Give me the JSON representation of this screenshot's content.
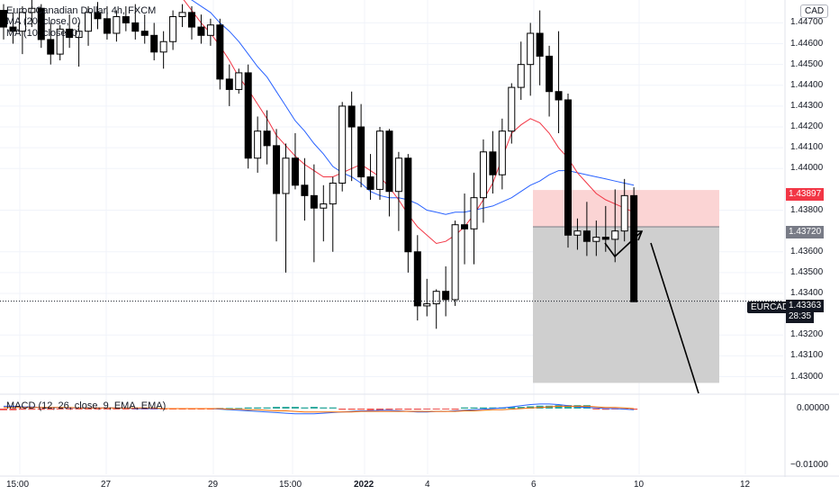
{
  "header": {
    "title": "Euro / Canadian Dollar, 4h, FXCM",
    "ma20": "MA (20, close, 0)",
    "ma10": "MA (10, close, 0)",
    "macd": "MACD (12, 26, close, 9, EMA, EMA)",
    "currency": "CAD"
  },
  "colors": {
    "up": "#ffffff",
    "down": "#000000",
    "ma20": "#2962ff",
    "ma10": "#f23645",
    "stop": "#fbd4d4",
    "target": "#cfcfcf",
    "macd_pos": "#26a69a",
    "macd_neg": "#ef5350"
  },
  "price_axis": {
    "ticks": [
      "1.44700",
      "1.44600",
      "1.44500",
      "1.44400",
      "1.44300",
      "1.44200",
      "1.44100",
      "1.44000",
      "1.43800",
      "1.43600",
      "1.43500",
      "1.43400",
      "1.43200",
      "1.43100",
      "1.43000"
    ],
    "stop_label": "1.43897",
    "entry_label": "1.43720",
    "current_label": "1.43363",
    "countdown": "28:35",
    "symbol": "EURCAD"
  },
  "macd_axis": {
    "ticks": [
      "0.00000",
      "−0.01000"
    ]
  },
  "time_axis": {
    "ticks": [
      "15:00",
      "27",
      "29",
      "15:00",
      "2022",
      "4",
      "6",
      "10",
      "12"
    ]
  },
  "chart_data": {
    "type": "candlestick",
    "symbol": "EURCAD",
    "timeframe": "4h",
    "candles": [
      {
        "o": 1.4476,
        "h": 1.4479,
        "l": 1.4462,
        "c": 1.4468
      },
      {
        "o": 1.4468,
        "h": 1.4475,
        "l": 1.446,
        "c": 1.4466
      },
      {
        "o": 1.4466,
        "h": 1.4478,
        "l": 1.4455,
        "c": 1.4475
      },
      {
        "o": 1.4475,
        "h": 1.4481,
        "l": 1.4468,
        "c": 1.4477
      },
      {
        "o": 1.4477,
        "h": 1.4479,
        "l": 1.4458,
        "c": 1.4462
      },
      {
        "o": 1.4462,
        "h": 1.447,
        "l": 1.445,
        "c": 1.4455
      },
      {
        "o": 1.4455,
        "h": 1.4469,
        "l": 1.4452,
        "c": 1.4467
      },
      {
        "o": 1.4467,
        "h": 1.4474,
        "l": 1.4458,
        "c": 1.4463
      },
      {
        "o": 1.4463,
        "h": 1.447,
        "l": 1.4449,
        "c": 1.4466
      },
      {
        "o": 1.4466,
        "h": 1.4478,
        "l": 1.4459,
        "c": 1.4475
      },
      {
        "o": 1.4475,
        "h": 1.448,
        "l": 1.4467,
        "c": 1.4472
      },
      {
        "o": 1.4472,
        "h": 1.4478,
        "l": 1.4462,
        "c": 1.4465
      },
      {
        "o": 1.4465,
        "h": 1.4476,
        "l": 1.4461,
        "c": 1.4473
      },
      {
        "o": 1.4473,
        "h": 1.4478,
        "l": 1.4466,
        "c": 1.447
      },
      {
        "o": 1.447,
        "h": 1.4479,
        "l": 1.4462,
        "c": 1.4466
      },
      {
        "o": 1.4466,
        "h": 1.4474,
        "l": 1.446,
        "c": 1.4464
      },
      {
        "o": 1.4464,
        "h": 1.447,
        "l": 1.4452,
        "c": 1.4456
      },
      {
        "o": 1.4456,
        "h": 1.4466,
        "l": 1.4448,
        "c": 1.4461
      },
      {
        "o": 1.4461,
        "h": 1.4476,
        "l": 1.4457,
        "c": 1.4473
      },
      {
        "o": 1.4473,
        "h": 1.4479,
        "l": 1.4468,
        "c": 1.4475
      },
      {
        "o": 1.4475,
        "h": 1.4478,
        "l": 1.4462,
        "c": 1.4468
      },
      {
        "o": 1.4468,
        "h": 1.4474,
        "l": 1.446,
        "c": 1.4464
      },
      {
        "o": 1.4464,
        "h": 1.4472,
        "l": 1.4459,
        "c": 1.4469
      },
      {
        "o": 1.4469,
        "h": 1.4472,
        "l": 1.4438,
        "c": 1.4443
      },
      {
        "o": 1.4443,
        "h": 1.445,
        "l": 1.443,
        "c": 1.4438
      },
      {
        "o": 1.4438,
        "h": 1.4448,
        "l": 1.4436,
        "c": 1.4446
      },
      {
        "o": 1.4446,
        "h": 1.445,
        "l": 1.44,
        "c": 1.4405
      },
      {
        "o": 1.4405,
        "h": 1.4425,
        "l": 1.4398,
        "c": 1.4418
      },
      {
        "o": 1.4418,
        "h": 1.4428,
        "l": 1.4402,
        "c": 1.4411
      },
      {
        "o": 1.4411,
        "h": 1.4419,
        "l": 1.4365,
        "c": 1.4388
      },
      {
        "o": 1.4388,
        "h": 1.4412,
        "l": 1.435,
        "c": 1.4405
      },
      {
        "o": 1.4405,
        "h": 1.4417,
        "l": 1.439,
        "c": 1.4392
      },
      {
        "o": 1.4392,
        "h": 1.4405,
        "l": 1.4375,
        "c": 1.4387
      },
      {
        "o": 1.4387,
        "h": 1.4402,
        "l": 1.4355,
        "c": 1.4381
      },
      {
        "o": 1.4381,
        "h": 1.4392,
        "l": 1.4365,
        "c": 1.4383
      },
      {
        "o": 1.4383,
        "h": 1.4396,
        "l": 1.436,
        "c": 1.4393
      },
      {
        "o": 1.4393,
        "h": 1.4432,
        "l": 1.4389,
        "c": 1.443
      },
      {
        "o": 1.443,
        "h": 1.4437,
        "l": 1.4394,
        "c": 1.442
      },
      {
        "o": 1.442,
        "h": 1.4431,
        "l": 1.4391,
        "c": 1.4396
      },
      {
        "o": 1.4396,
        "h": 1.4407,
        "l": 1.4385,
        "c": 1.439
      },
      {
        "o": 1.439,
        "h": 1.442,
        "l": 1.4385,
        "c": 1.4418
      },
      {
        "o": 1.4418,
        "h": 1.4419,
        "l": 1.4377,
        "c": 1.4389
      },
      {
        "o": 1.4389,
        "h": 1.4408,
        "l": 1.437,
        "c": 1.4405
      },
      {
        "o": 1.4405,
        "h": 1.4407,
        "l": 1.435,
        "c": 1.436
      },
      {
        "o": 1.436,
        "h": 1.4368,
        "l": 1.4327,
        "c": 1.4334
      },
      {
        "o": 1.4334,
        "h": 1.4347,
        "l": 1.4329,
        "c": 1.4335
      },
      {
        "o": 1.4335,
        "h": 1.4342,
        "l": 1.4323,
        "c": 1.4341
      },
      {
        "o": 1.4341,
        "h": 1.4353,
        "l": 1.4329,
        "c": 1.4337
      },
      {
        "o": 1.4337,
        "h": 1.4375,
        "l": 1.4334,
        "c": 1.4373
      },
      {
        "o": 1.4373,
        "h": 1.4388,
        "l": 1.4354,
        "c": 1.4371
      },
      {
        "o": 1.4371,
        "h": 1.4398,
        "l": 1.4354,
        "c": 1.4386
      },
      {
        "o": 1.4386,
        "h": 1.4414,
        "l": 1.4374,
        "c": 1.4408
      },
      {
        "o": 1.4408,
        "h": 1.4418,
        "l": 1.4388,
        "c": 1.4397
      },
      {
        "o": 1.4397,
        "h": 1.4424,
        "l": 1.439,
        "c": 1.4418
      },
      {
        "o": 1.4418,
        "h": 1.4441,
        "l": 1.4412,
        "c": 1.4439
      },
      {
        "o": 1.4439,
        "h": 1.4461,
        "l": 1.4433,
        "c": 1.445
      },
      {
        "o": 1.445,
        "h": 1.447,
        "l": 1.4435,
        "c": 1.4465
      },
      {
        "o": 1.4465,
        "h": 1.4476,
        "l": 1.444,
        "c": 1.4454
      },
      {
        "o": 1.4454,
        "h": 1.4459,
        "l": 1.4425,
        "c": 1.4437
      },
      {
        "o": 1.4437,
        "h": 1.4466,
        "l": 1.4417,
        "c": 1.4433
      },
      {
        "o": 1.4433,
        "h": 1.4436,
        "l": 1.4362,
        "c": 1.4368
      },
      {
        "o": 1.4368,
        "h": 1.4376,
        "l": 1.4361,
        "c": 1.437
      },
      {
        "o": 1.437,
        "h": 1.4384,
        "l": 1.4358,
        "c": 1.4365
      },
      {
        "o": 1.4365,
        "h": 1.4375,
        "l": 1.4358,
        "c": 1.4367
      },
      {
        "o": 1.4367,
        "h": 1.4382,
        "l": 1.436,
        "c": 1.4366
      },
      {
        "o": 1.4366,
        "h": 1.439,
        "l": 1.4355,
        "c": 1.437
      },
      {
        "o": 1.437,
        "h": 1.4395,
        "l": 1.4365,
        "c": 1.4387
      },
      {
        "o": 1.4387,
        "h": 1.4391,
        "l": 1.4336,
        "c": 1.4336
      }
    ],
    "ma20": [
      null,
      null,
      null,
      null,
      null,
      null,
      null,
      null,
      null,
      null,
      null,
      null,
      null,
      null,
      null,
      null,
      null,
      null,
      null,
      1.4484,
      1.4481,
      1.4478,
      1.4475,
      1.447,
      1.4466,
      1.4461,
      1.4455,
      1.4449,
      1.4444,
      1.4437,
      1.443,
      1.4423,
      1.4418,
      1.4412,
      1.4407,
      1.4401,
      1.4398,
      1.4396,
      1.4393,
      1.4389,
      1.4387,
      1.4386,
      1.4386,
      1.4385,
      1.4383,
      1.438,
      1.4379,
      1.4378,
      1.4379,
      1.4379,
      1.438,
      1.4381,
      1.4382,
      1.4384,
      1.4386,
      1.4389,
      1.4392,
      1.4394,
      1.4397,
      1.4399,
      1.4399,
      1.4398,
      1.4397,
      1.4396,
      1.4395,
      1.4394,
      1.4393,
      1.4392
    ],
    "ma10": [
      null,
      null,
      null,
      null,
      null,
      null,
      null,
      null,
      null,
      null,
      null,
      null,
      null,
      null,
      null,
      null,
      null,
      null,
      null,
      1.4482,
      1.4476,
      1.447,
      1.4465,
      1.4459,
      1.4452,
      1.4444,
      1.4438,
      1.4431,
      1.4424,
      1.4416,
      1.4411,
      1.4406,
      1.4402,
      1.4399,
      1.4396,
      1.4396,
      1.4398,
      1.44,
      1.4402,
      1.4399,
      1.4396,
      1.4391,
      1.4385,
      1.4378,
      1.4372,
      1.4368,
      1.4364,
      1.4365,
      1.4368,
      1.4372,
      1.4378,
      1.4385,
      1.4393,
      1.4405,
      1.4417,
      1.4421,
      1.4424,
      1.4422,
      1.4417,
      1.441,
      1.4405,
      1.4398,
      1.4393,
      1.4388,
      1.4385,
      1.4383,
      1.4381,
      1.4379
    ],
    "macd": {
      "hist": [
        -0.0003,
        -0.0003,
        -0.0002,
        -0.0002,
        -0.0002,
        -0.0002,
        -0.0001,
        -0.0001,
        -0.0001,
        -0.0001,
        -0.0001,
        -0.0001,
        -0.0001,
        -0.0001,
        -0.0001,
        -0.0001,
        -0.0001,
        -0.0001,
        -0.0001,
        -0.0001,
        -0.0001,
        -0.0001,
        -0.0001,
        0.0001,
        0.0001,
        0.0001,
        0.0002,
        0.0002,
        0.0002,
        0.0003,
        0.0003,
        0.0003,
        0.0002,
        0.0003,
        0.0002,
        0.0002,
        -0.0002,
        -0.0002,
        -0.0002,
        -0.0003,
        -0.0003,
        -0.0002,
        -0.0002,
        -0.0002,
        -0.0002,
        -0.0001,
        -0.0001,
        -0.0001,
        -0.0002,
        0.0002,
        0.0002,
        0.0002,
        0.0002,
        0.0002,
        0.0003,
        0.0003,
        0.0004,
        0.0005,
        0.0005,
        0.0006,
        0.0006,
        0.0006,
        0.0006,
        -0.0001,
        -0.0002,
        -0.0001,
        -0.0001,
        -0.0002
      ],
      "macd": [
        0.0004,
        0.0004,
        0.0003,
        0.0003,
        0.0002,
        0.0002,
        0.0002,
        0.0001,
        0.0001,
        0.0001,
        0.0001,
        0.0001,
        0.0001,
        0.0001,
        0.0,
        0.0,
        0.0,
        0.0,
        0.0,
        0.0,
        0.0,
        0.0,
        0.0,
        -0.0001,
        -0.0002,
        -0.0003,
        -0.0004,
        -0.0005,
        -0.0006,
        -0.0007,
        -0.0008,
        -0.0009,
        -0.0009,
        -0.0009,
        -0.0008,
        -0.0007,
        -0.0006,
        -0.0005,
        -0.0004,
        -0.0004,
        -0.0003,
        -0.0003,
        -0.0004,
        -0.0005,
        -0.0006,
        -0.0006,
        -0.0005,
        -0.0005,
        -0.0004,
        -0.0003,
        -0.0002,
        -0.0001,
        0.0,
        0.0001,
        0.0003,
        0.0005,
        0.0007,
        0.0008,
        0.0008,
        0.0007,
        0.0005,
        0.0003,
        0.0002,
        0.0001,
        0.0,
        0.0,
        -0.0001,
        -0.0002
      ],
      "signal": [
        0.0002,
        0.0002,
        0.0002,
        0.0002,
        0.0002,
        0.0002,
        0.0002,
        0.0002,
        0.0001,
        0.0001,
        0.0001,
        0.0001,
        0.0001,
        0.0001,
        0.0001,
        0.0001,
        0.0001,
        0.0,
        0.0,
        0.0,
        0.0,
        0.0,
        0.0,
        0.0,
        -0.0001,
        -0.0001,
        -0.0002,
        -0.0002,
        -0.0003,
        -0.0004,
        -0.0004,
        -0.0005,
        -0.0006,
        -0.0006,
        -0.0006,
        -0.0006,
        -0.0006,
        -0.0006,
        -0.0005,
        -0.0005,
        -0.0005,
        -0.0005,
        -0.0005,
        -0.0005,
        -0.0005,
        -0.0005,
        -0.0005,
        -0.0005,
        -0.0005,
        -0.0004,
        -0.0004,
        -0.0003,
        -0.0002,
        -0.0002,
        -0.0001,
        0.0,
        0.0001,
        0.0002,
        0.0003,
        0.0004,
        0.0004,
        0.0004,
        0.0004,
        0.0003,
        0.0002,
        0.0002,
        0.0001,
        0.0
      ]
    },
    "position": {
      "stop": 1.43897,
      "entry": 1.4372,
      "target": 1.4297
    },
    "price_range": [
      1.4292,
      1.4481
    ],
    "macd_range": [
      -0.0115,
      0.0022
    ]
  }
}
